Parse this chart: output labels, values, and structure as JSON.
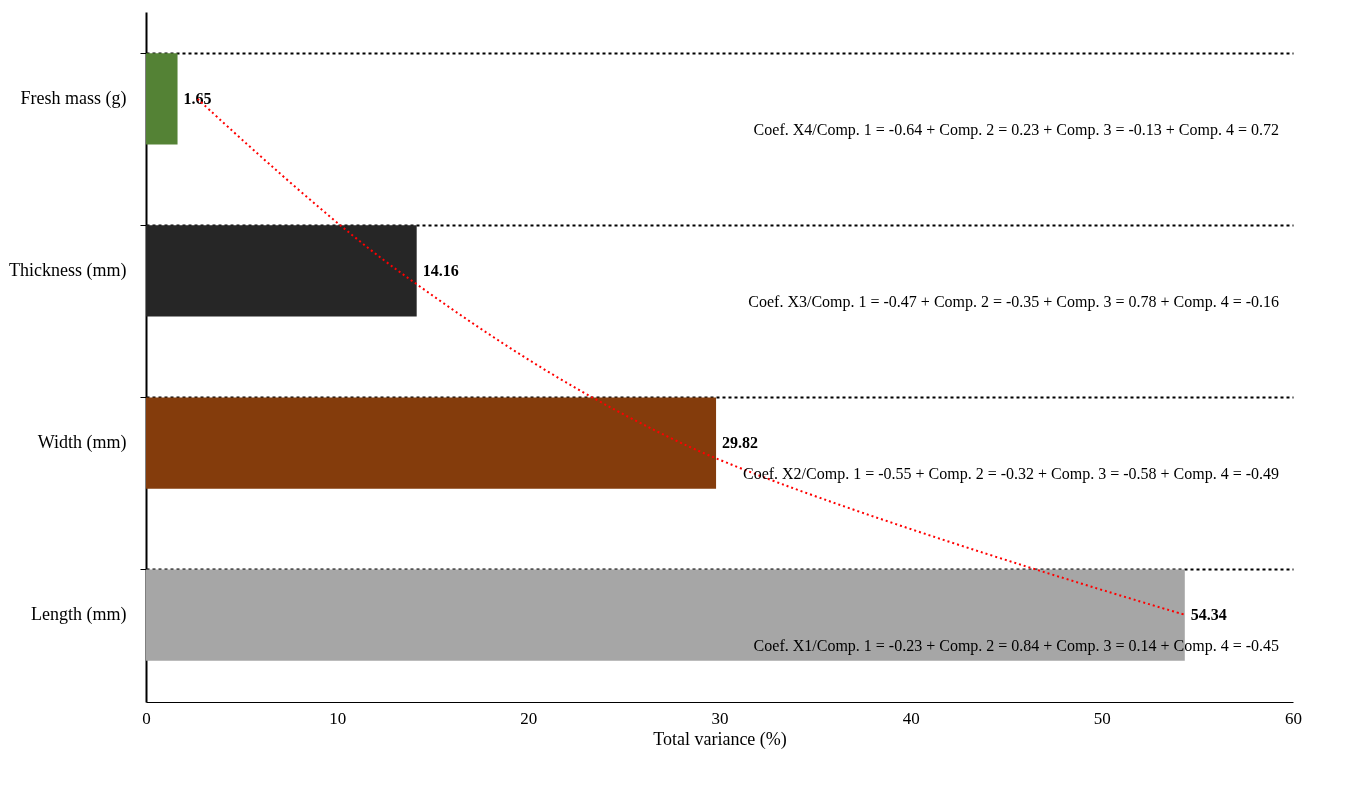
{
  "chart_data": {
    "type": "bar",
    "orientation": "horizontal",
    "xlabel": "Total variance  (%)",
    "categories": [
      "Fresh mass (g)",
      "Thickness (mm)",
      "Width (mm)",
      "Length (mm)"
    ],
    "xlim": [
      0,
      60
    ],
    "xticks": [
      0,
      10,
      20,
      30,
      40,
      50,
      60
    ],
    "grid": "y",
    "series": [
      {
        "values": [
          1.65,
          14.16,
          29.82,
          54.34
        ],
        "colors": [
          "#548235",
          "#262626",
          "#843c0c",
          "#a6a6a6"
        ],
        "value_labels": [
          "1.65",
          "14.16",
          "29.82",
          "54.34"
        ]
      },
      {
        "type": "line",
        "color": "#ff0000",
        "line_style": "dotted",
        "values": [
          2.7,
          13.2,
          28.0,
          54.4
        ]
      }
    ],
    "annotations": [
      "Coef. X4/Comp. 1 = -0.64  + Comp. 2 = 0.23  + Comp. 3 = -0.13  + Comp. 4 = 0.72",
      "Coef. X3/Comp. 1 = -0.47  + Comp. 2 = -0.35  + Comp. 3 = 0.78  + Comp. 4 = -0.16",
      "Coef. X2/Comp. 1 = -0.55  + Comp. 2 = -0.32  + Comp. 3 = -0.58  + Comp. 4 = -0.49",
      "Coef. X1/Comp. 1 = -0.23  + Comp. 2 = 0.84  + Comp. 3 = 0.14  + Comp. 4 = -0.45"
    ]
  }
}
